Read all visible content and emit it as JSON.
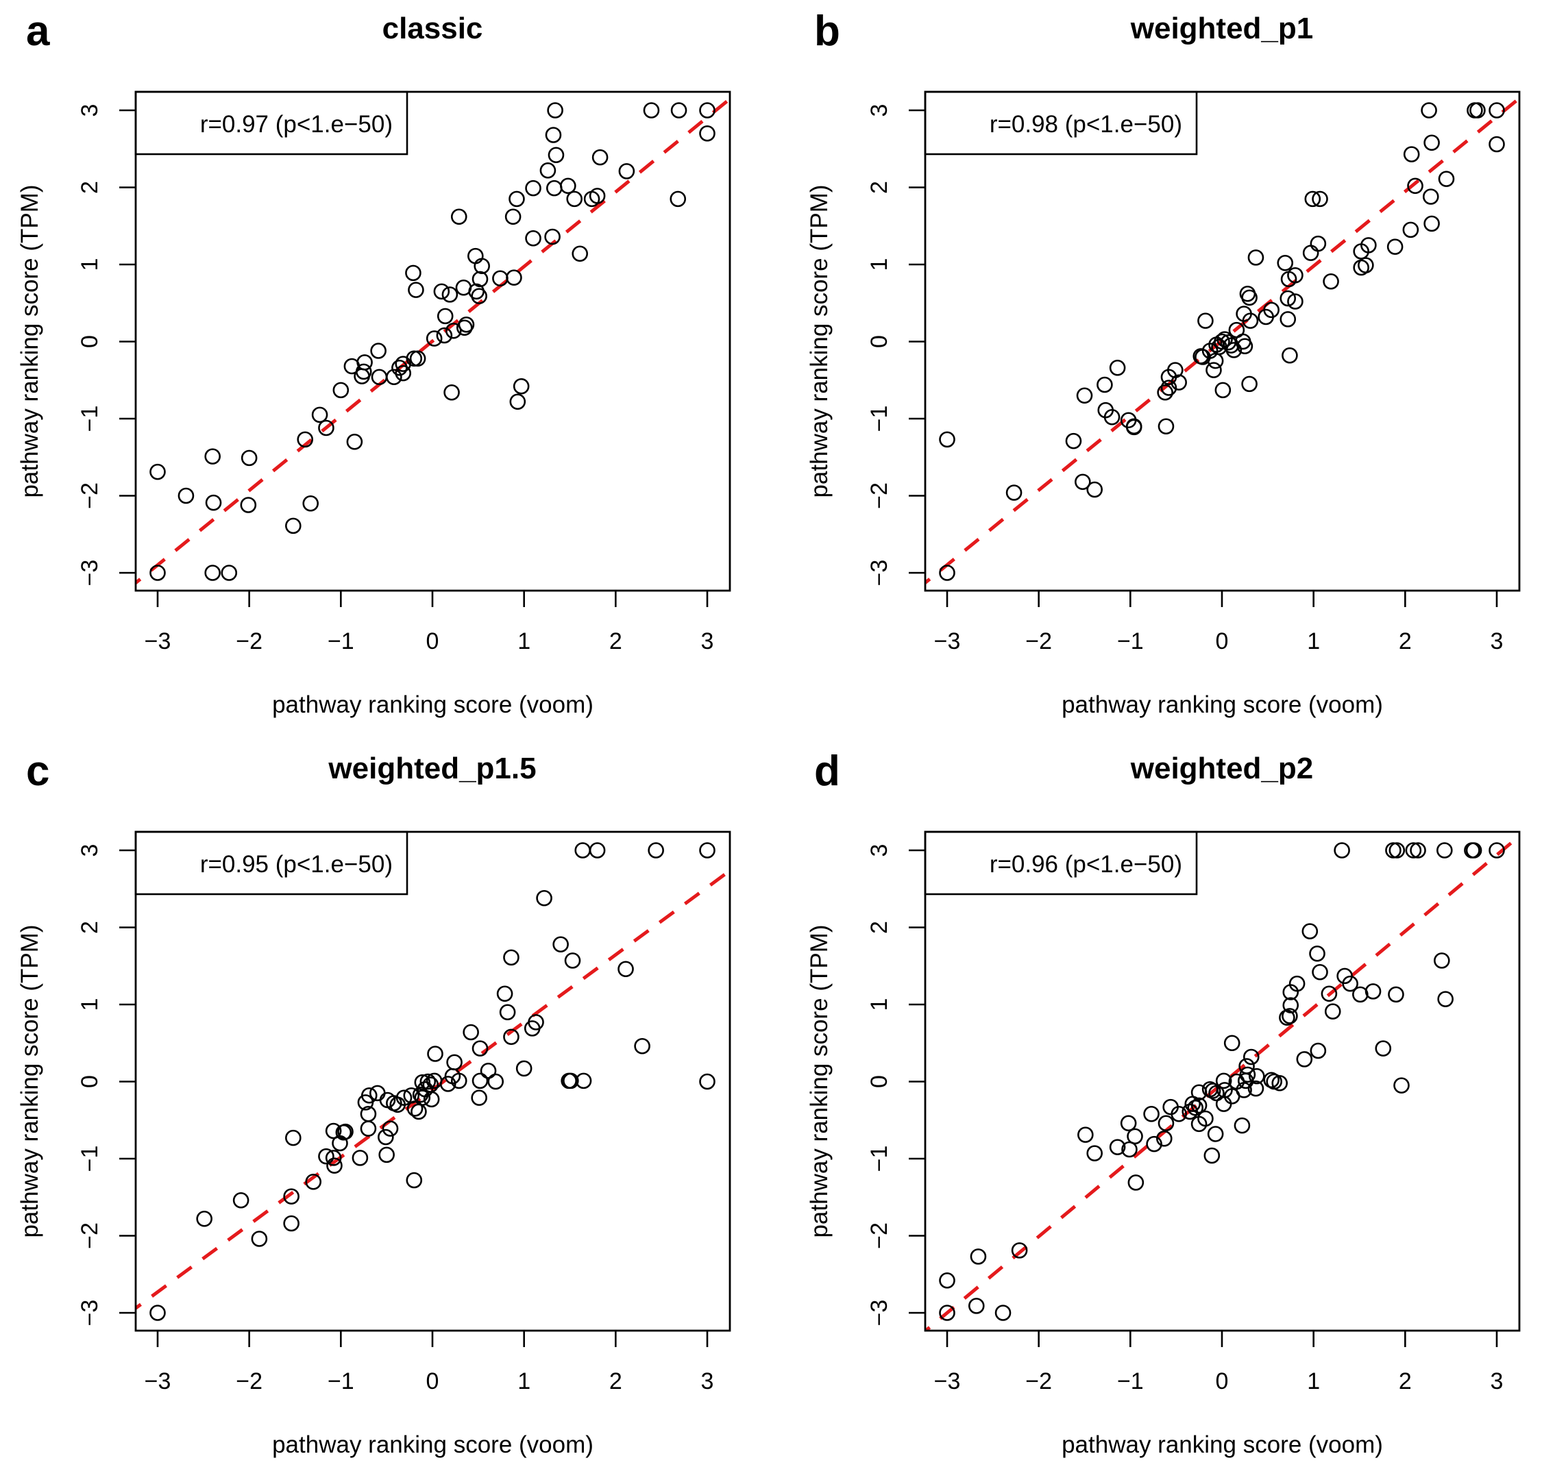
{
  "figure": {
    "x_label": "pathway ranking score (voom)",
    "y_label": "pathway ranking score (TPM)",
    "colors": {
      "points": "#000000",
      "fit_line": "#e41a1c",
      "frame": "#000000"
    }
  },
  "chart_data": [
    {
      "type": "scatter",
      "panel": "a",
      "title": "classic",
      "xlabel": "pathway ranking score (voom)",
      "ylabel": "pathway ranking score (TPM)",
      "legend": "r=0.97 (p<1.e−50)",
      "legend_position": "top-left",
      "xlim": [
        -3.24,
        3.24
      ],
      "ylim": [
        -3.24,
        3.24
      ],
      "xticks": [
        "−3",
        "−2",
        "−1",
        "0",
        "1",
        "2",
        "3"
      ],
      "yticks": [
        "−3",
        "−2",
        "−1",
        "0",
        "1",
        "2",
        "3"
      ],
      "grid": false,
      "fit_line": {
        "slope": 0.968,
        "intercept": 0.005,
        "style": "dashed"
      },
      "points": [
        [
          -3,
          -3
        ],
        [
          -2.4,
          -3.0
        ],
        [
          -2.22,
          -3.0
        ],
        [
          -3,
          -1.69
        ],
        [
          -2.69,
          -2.0
        ],
        [
          -2.4,
          -1.49
        ],
        [
          -2.39,
          -2.09
        ],
        [
          -2.0,
          -1.51
        ],
        [
          -2.01,
          -2.12
        ],
        [
          -1.52,
          -2.39
        ],
        [
          -1.33,
          -2.1
        ],
        [
          -1.39,
          -1.27
        ],
        [
          -1.23,
          -0.95
        ],
        [
          -1.16,
          -1.12
        ],
        [
          -0.85,
          -1.3
        ],
        [
          -1.0,
          -0.63
        ],
        [
          -0.88,
          -0.32
        ],
        [
          -0.77,
          -0.45
        ],
        [
          -0.74,
          -0.27
        ],
        [
          -0.75,
          -0.39
        ],
        [
          -0.59,
          -0.12
        ],
        [
          -0.58,
          -0.46
        ],
        [
          -0.42,
          -0.46
        ],
        [
          -0.36,
          -0.34
        ],
        [
          -0.32,
          -0.29
        ],
        [
          -0.32,
          -0.41
        ],
        [
          -0.2,
          -0.22
        ],
        [
          -0.16,
          -0.22
        ],
        [
          -0.21,
          0.89
        ],
        [
          -0.18,
          0.67
        ],
        [
          0.02,
          0.04
        ],
        [
          0.13,
          0.08
        ],
        [
          0.14,
          0.33
        ],
        [
          0.23,
          0.14
        ],
        [
          0.35,
          0.18
        ],
        [
          0.37,
          0.22
        ],
        [
          0.1,
          0.65
        ],
        [
          0.19,
          0.61
        ],
        [
          0.34,
          0.7
        ],
        [
          0.29,
          1.62
        ],
        [
          0.21,
          -0.66
        ],
        [
          0.47,
          1.11
        ],
        [
          0.54,
          0.98
        ],
        [
          0.48,
          0.65
        ],
        [
          0.51,
          0.59
        ],
        [
          0.52,
          0.81
        ],
        [
          0.74,
          0.82
        ],
        [
          0.89,
          0.83
        ],
        [
          0.97,
          -0.58
        ],
        [
          0.93,
          -0.78
        ],
        [
          0.88,
          1.62
        ],
        [
          0.92,
          1.85
        ],
        [
          1.1,
          1.34
        ],
        [
          1.31,
          1.36
        ],
        [
          1.1,
          1.99
        ],
        [
          1.33,
          1.99
        ],
        [
          1.48,
          2.02
        ],
        [
          1.26,
          2.22
        ],
        [
          1.32,
          2.68
        ],
        [
          1.35,
          2.42
        ],
        [
          1.34,
          3.0
        ],
        [
          1.55,
          1.85
        ],
        [
          1.74,
          1.85
        ],
        [
          1.8,
          1.89
        ],
        [
          1.83,
          2.39
        ],
        [
          1.61,
          1.14
        ],
        [
          2.12,
          2.21
        ],
        [
          2.39,
          3.0
        ],
        [
          2.69,
          3.0
        ],
        [
          2.68,
          1.85
        ],
        [
          3.0,
          3.0
        ],
        [
          3.0,
          2.7
        ]
      ]
    },
    {
      "type": "scatter",
      "panel": "b",
      "title": "weighted_p1",
      "xlabel": "pathway ranking score (voom)",
      "ylabel": "pathway ranking score (TPM)",
      "legend": "r=0.98 (p<1.e−50)",
      "legend_position": "top-left",
      "xlim": [
        -3.24,
        3.24
      ],
      "ylim": [
        -3.24,
        3.24
      ],
      "xticks": [
        "−3",
        "−2",
        "−1",
        "0",
        "1",
        "2",
        "3"
      ],
      "yticks": [
        "−3",
        "−2",
        "−1",
        "0",
        "1",
        "2",
        "3"
      ],
      "grid": false,
      "fit_line": {
        "slope": 0.969,
        "intercept": 0.01,
        "style": "dashed"
      },
      "points": [
        [
          -3,
          -3
        ],
        [
          -3,
          -1.27
        ],
        [
          -2.27,
          -1.96
        ],
        [
          -1.62,
          -1.29
        ],
        [
          -1.52,
          -1.82
        ],
        [
          -1.39,
          -1.92
        ],
        [
          -1.5,
          -0.7
        ],
        [
          -1.28,
          -0.56
        ],
        [
          -1.14,
          -0.34
        ],
        [
          -1.27,
          -0.89
        ],
        [
          -1.2,
          -0.98
        ],
        [
          -1.02,
          -1.02
        ],
        [
          -0.96,
          -1.1
        ],
        [
          -0.96,
          -1.11
        ],
        [
          -0.61,
          -1.1
        ],
        [
          -0.62,
          -0.66
        ],
        [
          -0.58,
          -0.6
        ],
        [
          -0.58,
          -0.46
        ],
        [
          -0.51,
          -0.37
        ],
        [
          -0.47,
          -0.53
        ],
        [
          -0.23,
          -0.19
        ],
        [
          -0.21,
          -0.2
        ],
        [
          -0.18,
          0.27
        ],
        [
          -0.13,
          -0.12
        ],
        [
          -0.07,
          -0.25
        ],
        [
          -0.09,
          -0.37
        ],
        [
          -0.06,
          -0.04
        ],
        [
          -0.03,
          -0.07
        ],
        [
          0.0,
          0.0
        ],
        [
          0.03,
          0.03
        ],
        [
          0.07,
          -0.01
        ],
        [
          0.1,
          -0.05
        ],
        [
          0.13,
          -0.11
        ],
        [
          0.16,
          0.15
        ],
        [
          0.23,
          0.0
        ],
        [
          0.25,
          -0.06
        ],
        [
          0.01,
          -0.63
        ],
        [
          0.3,
          -0.55
        ],
        [
          0.24,
          0.36
        ],
        [
          0.31,
          0.27
        ],
        [
          0.28,
          0.62
        ],
        [
          0.3,
          0.57
        ],
        [
          0.37,
          1.09
        ],
        [
          0.48,
          0.32
        ],
        [
          0.54,
          0.41
        ],
        [
          0.72,
          0.29
        ],
        [
          0.74,
          -0.18
        ],
        [
          0.72,
          0.56
        ],
        [
          0.8,
          0.52
        ],
        [
          0.73,
          0.81
        ],
        [
          0.8,
          0.86
        ],
        [
          0.69,
          1.02
        ],
        [
          0.97,
          1.15
        ],
        [
          1.05,
          1.27
        ],
        [
          1.19,
          0.78
        ],
        [
          0.99,
          1.85
        ],
        [
          1.07,
          1.85
        ],
        [
          1.52,
          1.17
        ],
        [
          1.6,
          1.25
        ],
        [
          1.52,
          0.96
        ],
        [
          1.57,
          0.99
        ],
        [
          1.89,
          1.23
        ],
        [
          2.06,
          1.45
        ],
        [
          2.11,
          2.02
        ],
        [
          2.07,
          2.43
        ],
        [
          2.28,
          1.88
        ],
        [
          2.29,
          1.53
        ],
        [
          2.29,
          2.58
        ],
        [
          2.45,
          2.11
        ],
        [
          2.26,
          3.0
        ],
        [
          2.76,
          3.0
        ],
        [
          2.79,
          3.0
        ],
        [
          3.0,
          3.0
        ],
        [
          3.0,
          2.56
        ]
      ]
    },
    {
      "type": "scatter",
      "panel": "c",
      "title": "weighted_p1.5",
      "xlabel": "pathway ranking score (voom)",
      "ylabel": "pathway ranking score (TPM)",
      "legend": "r=0.95 (p<1.e−50)",
      "legend_position": "top-left",
      "xlim": [
        -3.24,
        3.24
      ],
      "ylim": [
        -3.24,
        3.24
      ],
      "xticks": [
        "−3",
        "−2",
        "−1",
        "0",
        "1",
        "2",
        "3"
      ],
      "yticks": [
        "−3",
        "−2",
        "−1",
        "0",
        "1",
        "2",
        "3"
      ],
      "grid": false,
      "fit_line": {
        "slope": 0.875,
        "intercept": -0.105,
        "style": "dashed"
      },
      "points": [
        [
          -3,
          -3
        ],
        [
          -2.49,
          -1.78
        ],
        [
          -2.09,
          -1.54
        ],
        [
          -1.89,
          -2.04
        ],
        [
          -1.54,
          -1.84
        ],
        [
          -1.54,
          -1.49
        ],
        [
          -1.52,
          -0.73
        ],
        [
          -1.3,
          -1.3
        ],
        [
          -1.16,
          -0.97
        ],
        [
          -1.08,
          -0.99
        ],
        [
          -1.07,
          -1.09
        ],
        [
          -1.08,
          -0.64
        ],
        [
          -1.01,
          -0.8
        ],
        [
          -0.97,
          -0.66
        ],
        [
          -0.95,
          -0.65
        ],
        [
          -0.79,
          -0.99
        ],
        [
          -0.7,
          -0.61
        ],
        [
          -0.7,
          -0.42
        ],
        [
          -0.73,
          -0.27
        ],
        [
          -0.69,
          -0.18
        ],
        [
          -0.6,
          -0.15
        ],
        [
          -0.49,
          -0.24
        ],
        [
          -0.42,
          -0.28
        ],
        [
          -0.38,
          -0.3
        ],
        [
          -0.51,
          -0.72
        ],
        [
          -0.46,
          -0.61
        ],
        [
          -0.5,
          -0.95
        ],
        [
          -0.31,
          -0.21
        ],
        [
          -0.23,
          -0.18
        ],
        [
          -0.2,
          -1.28
        ],
        [
          -0.19,
          -0.35
        ],
        [
          -0.15,
          -0.39
        ],
        [
          -0.13,
          -0.17
        ],
        [
          -0.11,
          -0.01
        ],
        [
          -0.08,
          -0.1
        ],
        [
          -0.11,
          -0.21
        ],
        [
          -0.05,
          0.0
        ],
        [
          -0.02,
          -0.04
        ],
        [
          0.02,
          0.01
        ],
        [
          -0.01,
          -0.23
        ],
        [
          0.03,
          0.36
        ],
        [
          0.17,
          -0.03
        ],
        [
          0.22,
          0.07
        ],
        [
          0.24,
          0.25
        ],
        [
          0.29,
          0.01
        ],
        [
          0.42,
          0.64
        ],
        [
          0.52,
          0.43
        ],
        [
          0.52,
          0.01
        ],
        [
          0.51,
          -0.21
        ],
        [
          0.61,
          0.14
        ],
        [
          0.69,
          0.0
        ],
        [
          0.86,
          0.58
        ],
        [
          0.82,
          0.9
        ],
        [
          0.79,
          1.14
        ],
        [
          0.86,
          1.61
        ],
        [
          1.0,
          0.17
        ],
        [
          1.09,
          0.69
        ],
        [
          1.13,
          0.77
        ],
        [
          1.22,
          2.38
        ],
        [
          1.4,
          1.78
        ],
        [
          1.53,
          1.57
        ],
        [
          1.49,
          0.01
        ],
        [
          1.51,
          0.01
        ],
        [
          1.65,
          0.01
        ],
        [
          1.64,
          3.0
        ],
        [
          1.8,
          3.0
        ],
        [
          2.11,
          1.46
        ],
        [
          2.29,
          0.46
        ],
        [
          2.44,
          3.0
        ],
        [
          3.0,
          3.0
        ],
        [
          3.0,
          0.0
        ]
      ]
    },
    {
      "type": "scatter",
      "panel": "d",
      "title": "weighted_p2",
      "xlabel": "pathway ranking score (voom)",
      "ylabel": "pathway ranking score (TPM)",
      "legend": "r=0.96 (p<1.e−50)",
      "legend_position": "top-left",
      "xlim": [
        -3.24,
        3.24
      ],
      "ylim": [
        -3.24,
        3.24
      ],
      "xticks": [
        "−3",
        "−2",
        "−1",
        "0",
        "1",
        "2",
        "3"
      ],
      "yticks": [
        "−3",
        "−2",
        "−1",
        "0",
        "1",
        "2",
        "3"
      ],
      "grid": false,
      "fit_line": {
        "slope": 0.99,
        "intercept": -0.03,
        "style": "dashed"
      },
      "points": [
        [
          -3,
          -3
        ],
        [
          -3,
          -2.58
        ],
        [
          -2.68,
          -2.91
        ],
        [
          -2.39,
          -3.0
        ],
        [
          -2.66,
          -2.27
        ],
        [
          -2.21,
          -2.19
        ],
        [
          -1.49,
          -0.69
        ],
        [
          -1.39,
          -0.93
        ],
        [
          -1.14,
          -0.85
        ],
        [
          -1.02,
          -0.54
        ],
        [
          -0.95,
          -0.71
        ],
        [
          -1.01,
          -0.88
        ],
        [
          -0.94,
          -1.31
        ],
        [
          -0.77,
          -0.42
        ],
        [
          -0.74,
          -0.81
        ],
        [
          -0.63,
          -0.74
        ],
        [
          -0.61,
          -0.54
        ],
        [
          -0.56,
          -0.33
        ],
        [
          -0.47,
          -0.42
        ],
        [
          -0.35,
          -0.39
        ],
        [
          -0.32,
          -0.29
        ],
        [
          -0.29,
          -0.34
        ],
        [
          -0.25,
          -0.31
        ],
        [
          -0.25,
          -0.55
        ],
        [
          -0.18,
          -0.48
        ],
        [
          -0.25,
          -0.14
        ],
        [
          -0.13,
          -0.1
        ],
        [
          -0.1,
          -0.12
        ],
        [
          -0.06,
          -0.15
        ],
        [
          -0.07,
          -0.68
        ],
        [
          -0.11,
          -0.96
        ],
        [
          0.02,
          -0.29
        ],
        [
          0.03,
          -0.11
        ],
        [
          0.02,
          0.01
        ],
        [
          0.11,
          -0.19
        ],
        [
          0.11,
          0.5
        ],
        [
          0.16,
          0.0
        ],
        [
          0.24,
          -0.11
        ],
        [
          0.22,
          -0.57
        ],
        [
          0.26,
          0.01
        ],
        [
          0.28,
          0.09
        ],
        [
          0.27,
          0.2
        ],
        [
          0.32,
          0.32
        ],
        [
          0.37,
          -0.09
        ],
        [
          0.38,
          0.07
        ],
        [
          0.54,
          0.02
        ],
        [
          0.57,
          0.0
        ],
        [
          0.63,
          -0.02
        ],
        [
          0.71,
          0.83
        ],
        [
          0.74,
          0.85
        ],
        [
          0.75,
          0.99
        ],
        [
          0.75,
          1.16
        ],
        [
          0.82,
          1.27
        ],
        [
          0.9,
          0.29
        ],
        [
          1.05,
          0.4
        ],
        [
          0.96,
          1.95
        ],
        [
          1.04,
          1.66
        ],
        [
          1.07,
          1.42
        ],
        [
          1.17,
          1.14
        ],
        [
          1.21,
          0.91
        ],
        [
          1.34,
          1.37
        ],
        [
          1.4,
          1.27
        ],
        [
          1.51,
          1.13
        ],
        [
          1.65,
          1.17
        ],
        [
          1.76,
          0.43
        ],
        [
          1.9,
          1.13
        ],
        [
          1.96,
          -0.05
        ],
        [
          2.4,
          1.57
        ],
        [
          2.44,
          1.07
        ],
        [
          1.31,
          3.0
        ],
        [
          1.87,
          3.0
        ],
        [
          1.91,
          3.0
        ],
        [
          2.09,
          3.0
        ],
        [
          2.14,
          3.0
        ],
        [
          2.43,
          3.0
        ],
        [
          2.73,
          3.0
        ],
        [
          2.75,
          3.0
        ],
        [
          3.0,
          3.0
        ]
      ]
    }
  ]
}
